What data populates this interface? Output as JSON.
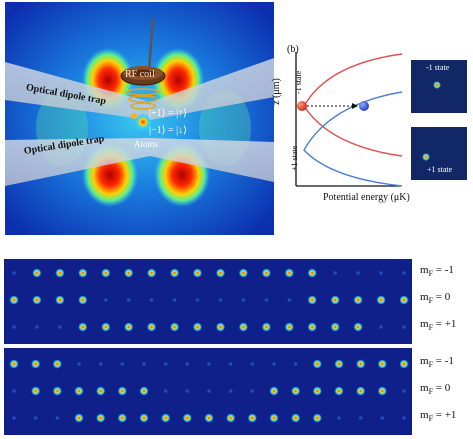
{
  "panel_b": {
    "tag": "(b)",
    "y_axis_label": "z (μm)",
    "x_axis_label": "Potential energy (μK)",
    "upper_curve_label": "-1 state",
    "lower_curve_label": "+1 state",
    "inset_top_label": "-1 state",
    "inset_bottom_label": "+1 state"
  },
  "panel_a": {
    "coil_label": "RF coil",
    "trap_label_upper": "Optical dipole trap",
    "trap_label_lower": "Optical dipole trap",
    "state_up": "|+1⟩ = |↑⟩",
    "state_down": "|−1⟩ = |↓⟩",
    "atoms_label": "Atoms"
  },
  "colors": {
    "curve_minus1": "#e05050",
    "curve_plus1": "#4a7fd0",
    "atom_red": "#e03020",
    "atom_blue": "#2050c0",
    "image_background": "#10208a"
  },
  "absorption_images": {
    "top": {
      "label_rows": [
        {
          "sym": "m",
          "sub": "F",
          "val": " = -1"
        },
        {
          "sym": "m",
          "sub": "F",
          "val": " = 0"
        },
        {
          "sym": "m",
          "sub": "F",
          "val": " = +1"
        }
      ],
      "row_minus1": [
        0,
        1,
        1,
        1,
        1,
        1,
        1,
        1,
        1,
        1,
        1,
        1,
        1,
        1,
        0,
        0,
        0,
        0
      ],
      "row_0": [
        1,
        1,
        1,
        1,
        0,
        0,
        0,
        0,
        0,
        0,
        0,
        0,
        0,
        1,
        1,
        1,
        1,
        1
      ],
      "row_plus1": [
        0,
        0,
        0,
        1,
        1,
        1,
        1,
        1,
        1,
        1,
        1,
        1,
        1,
        1,
        1,
        1,
        0,
        0
      ]
    },
    "bottom": {
      "label_rows": [
        {
          "sym": "m",
          "sub": "F",
          "val": " = -1"
        },
        {
          "sym": "m",
          "sub": "F",
          "val": " = 0"
        },
        {
          "sym": "m",
          "sub": "F",
          "val": " = +1"
        }
      ],
      "row_minus1": [
        1,
        1,
        1,
        0,
        0,
        0,
        0,
        0,
        0,
        0,
        0,
        0,
        0,
        0,
        1,
        1,
        1,
        1,
        1
      ],
      "row_0": [
        0,
        1,
        1,
        1,
        1,
        1,
        1,
        0,
        0,
        0,
        0,
        0,
        1,
        1,
        1,
        1,
        1,
        1,
        0
      ],
      "row_plus1": [
        0,
        0,
        0,
        1,
        1,
        1,
        1,
        1,
        1,
        1,
        1,
        1,
        1,
        1,
        1,
        0,
        0,
        0,
        0
      ]
    }
  }
}
